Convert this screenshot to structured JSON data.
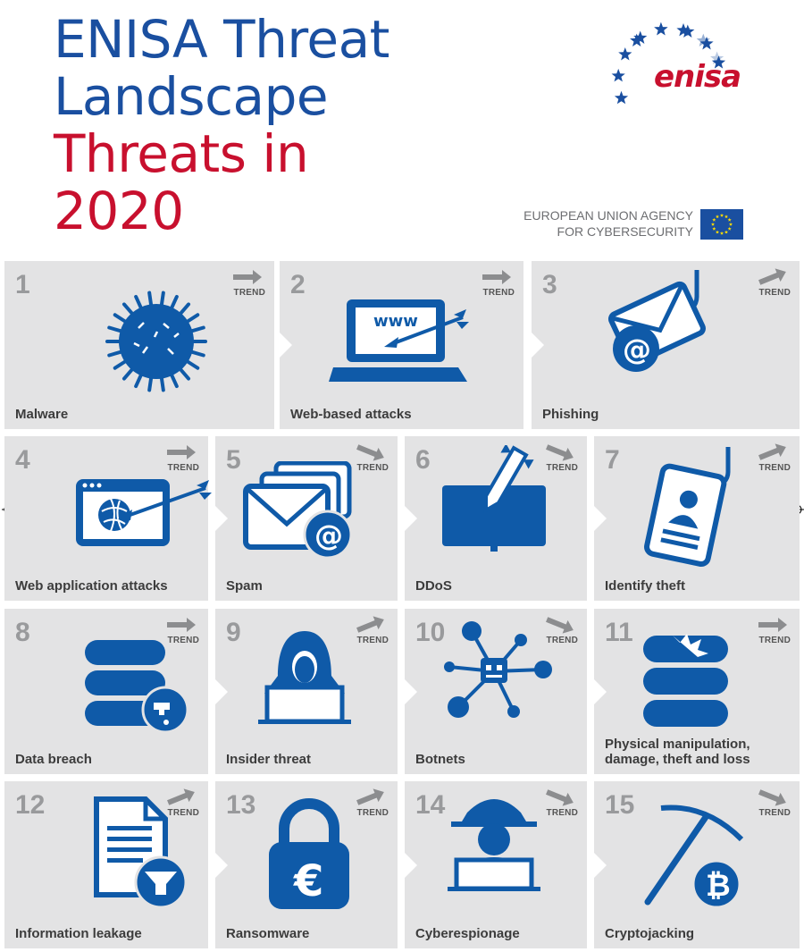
{
  "header": {
    "title_line1": "ENISA Threat",
    "title_line2": "Landscape",
    "title_line3": "Threats in",
    "title_line4": "2020",
    "logo_text": "enisa",
    "agency_line1": "EUROPEAN UNION AGENCY",
    "agency_line2": "FOR CYBERSECURITY"
  },
  "colors": {
    "brand_blue": "#1a4fa0",
    "brand_red": "#c8102e",
    "tile_grey": "#e3e3e4",
    "icon_blue": "#0f5aa8"
  },
  "trend_label": "TREND",
  "threats": [
    {
      "rank": "1",
      "name": "Malware",
      "icon": "malware-virus-icon",
      "trend": "stable"
    },
    {
      "rank": "2",
      "name": "Web-based attacks",
      "icon": "laptop-arrow-icon",
      "trend": "stable"
    },
    {
      "rank": "3",
      "name": "Phishing",
      "icon": "envelope-hook-icon",
      "trend": "increasing"
    },
    {
      "rank": "4",
      "name": "Web application attacks",
      "icon": "browser-arrow-icon",
      "trend": "stable"
    },
    {
      "rank": "5",
      "name": "Spam",
      "icon": "envelopes-at-icon",
      "trend": "decreasing"
    },
    {
      "rank": "6",
      "name": "DDoS",
      "icon": "monitor-missile-icon",
      "trend": "decreasing"
    },
    {
      "rank": "7",
      "name": "Identify theft",
      "icon": "id-card-hook-icon",
      "trend": "increasing"
    },
    {
      "rank": "8",
      "name": "Data breach",
      "icon": "database-leak-icon",
      "trend": "stable"
    },
    {
      "rank": "9",
      "name": "Insider threat",
      "icon": "hooded-figure-icon",
      "trend": "increasing"
    },
    {
      "rank": "10",
      "name": "Botnets",
      "icon": "robot-network-icon",
      "trend": "decreasing"
    },
    {
      "rank": "11",
      "name": "Physical manipulation, damage, theft and loss",
      "icon": "database-damage-icon",
      "trend": "stable"
    },
    {
      "rank": "12",
      "name": "Information leakage",
      "icon": "document-funnel-icon",
      "trend": "increasing"
    },
    {
      "rank": "13",
      "name": "Ransomware",
      "icon": "padlock-euro-icon",
      "trend": "increasing"
    },
    {
      "rank": "14",
      "name": "Cyberespionage",
      "icon": "spy-hat-icon",
      "trend": "decreasing"
    },
    {
      "rank": "15",
      "name": "Cryptojacking",
      "icon": "pickaxe-bitcoin-icon",
      "trend": "decreasing"
    }
  ]
}
